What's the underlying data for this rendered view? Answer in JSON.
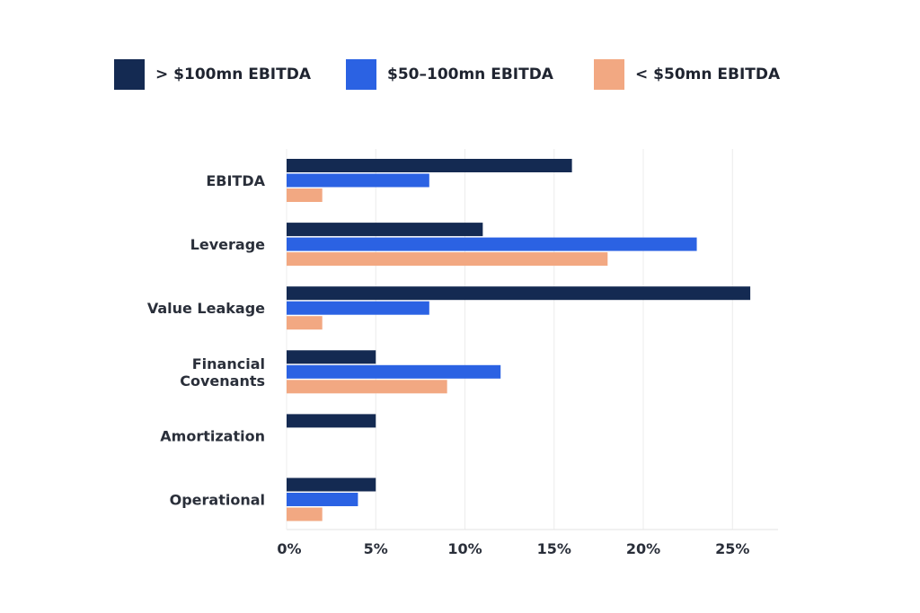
{
  "chart_data": {
    "type": "bar",
    "orientation": "horizontal",
    "categories": [
      [
        "EBITDA"
      ],
      [
        "Leverage"
      ],
      [
        "Value Leakage"
      ],
      [
        "Financial",
        "Covenants"
      ],
      [
        "Amortization"
      ],
      [
        "Operational"
      ]
    ],
    "series": [
      {
        "name": "> $100mn EBITDA",
        "color": "#142a52",
        "values": [
          16,
          11,
          26,
          5,
          5,
          5
        ]
      },
      {
        "name": "$50–100mn EBITDA",
        "color": "#2b62e3",
        "values": [
          8,
          23,
          8,
          12,
          0,
          4
        ]
      },
      {
        "name": "< $50mn EBITDA",
        "color": "#f2a882",
        "values": [
          2,
          18,
          2,
          9,
          0,
          2
        ]
      }
    ],
    "xlim": [
      0,
      27
    ],
    "xticks": [
      0,
      5,
      10,
      15,
      20,
      25
    ],
    "xtick_labels": [
      "0%",
      "5%",
      "10%",
      "15%",
      "20%",
      "25%"
    ],
    "grid": true,
    "legend_position": "top"
  }
}
